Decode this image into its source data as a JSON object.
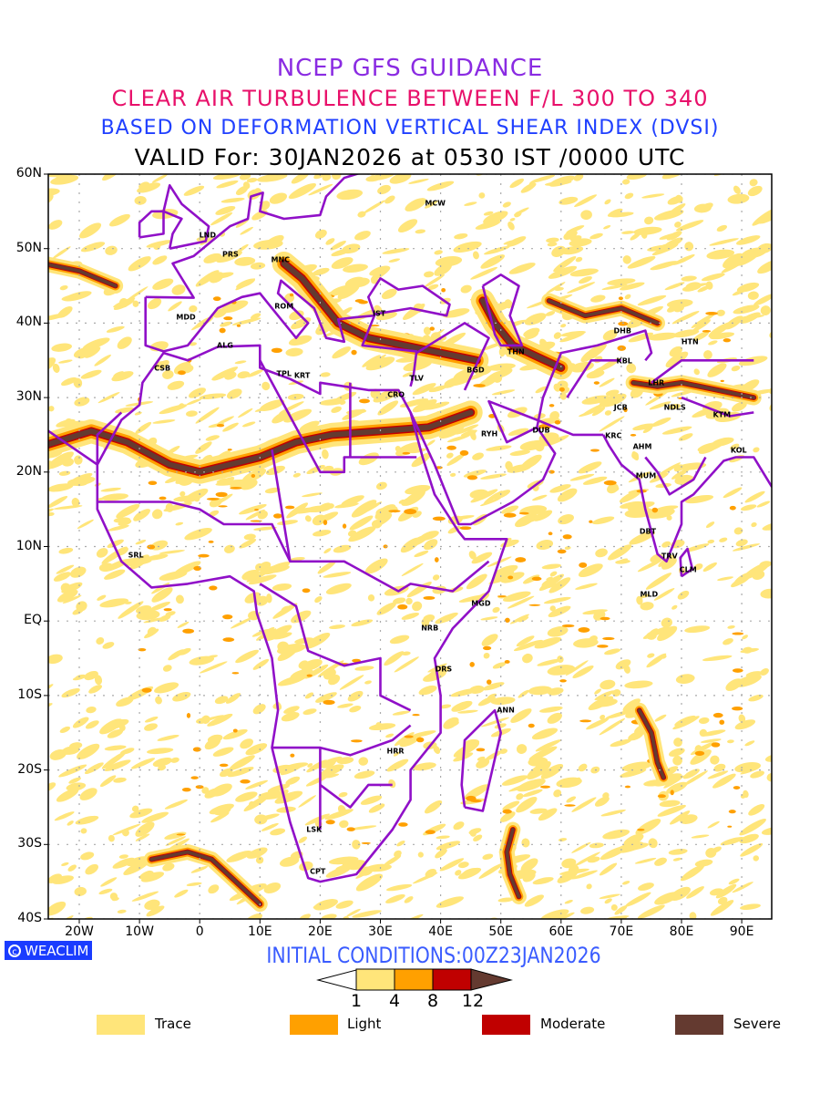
{
  "header": {
    "line1": "NCEP GFS GUIDANCE",
    "line2": "CLEAR AIR TURBULENCE BETWEEN F/L 300 TO 340",
    "line3": "BASED ON DEFORMATION VERTICAL SHEAR INDEX (DVSI)",
    "line4": "VALID For: 30JAN2026 at 0530 IST /0000 UTC"
  },
  "axes": {
    "lat_labels": [
      "60N",
      "50N",
      "40N",
      "30N",
      "20N",
      "10N",
      "EQ",
      "10S",
      "20S",
      "30S",
      "40S"
    ],
    "lat_values": [
      60,
      50,
      40,
      30,
      20,
      10,
      0,
      -10,
      -20,
      -30,
      -40
    ],
    "lon_labels": [
      "20W",
      "10W",
      "0",
      "10E",
      "20E",
      "30E",
      "40E",
      "50E",
      "60E",
      "70E",
      "80E",
      "90E"
    ],
    "lon_values": [
      -20,
      -10,
      0,
      10,
      20,
      30,
      40,
      50,
      60,
      70,
      80,
      90
    ]
  },
  "branding": "WEACLIM",
  "initial_conditions": "INITIAL CONDITIONS:00Z23JAN2026",
  "colorbar": {
    "ticks": [
      "1",
      "4",
      "8",
      "12"
    ],
    "colors": [
      "#ffe57a",
      "#ffa000",
      "#c00000",
      "#643a30"
    ]
  },
  "legend": [
    {
      "label": "Trace",
      "color": "#ffe57a"
    },
    {
      "label": "Light",
      "color": "#ffa000"
    },
    {
      "label": "Moderate",
      "color": "#c00000"
    },
    {
      "label": "Severe",
      "color": "#643a30"
    }
  ],
  "stations": [
    {
      "code": "MCW",
      "lon": 39.1,
      "lat": 56.1
    },
    {
      "code": "LND",
      "lon": 1.3,
      "lat": 51.8
    },
    {
      "code": "PRS",
      "lon": 5.1,
      "lat": 49.2
    },
    {
      "code": "MNC",
      "lon": 13.4,
      "lat": 48.5
    },
    {
      "code": "ROM",
      "lon": 14.0,
      "lat": 42.3
    },
    {
      "code": "IST",
      "lon": 29.8,
      "lat": 41.3
    },
    {
      "code": "MDD",
      "lon": -2.3,
      "lat": 40.8
    },
    {
      "code": "ALG",
      "lon": 4.2,
      "lat": 37.0
    },
    {
      "code": "CSB",
      "lon": -6.2,
      "lat": 33.9
    },
    {
      "code": "TPL",
      "lon": 14.0,
      "lat": 33.2
    },
    {
      "code": "KRT",
      "lon": 17.0,
      "lat": 33.0
    },
    {
      "code": "TLV",
      "lon": 36.0,
      "lat": 32.6
    },
    {
      "code": "CRO",
      "lon": 32.6,
      "lat": 30.4
    },
    {
      "code": "BGD",
      "lon": 45.8,
      "lat": 33.7
    },
    {
      "code": "THN",
      "lon": 52.5,
      "lat": 36.1
    },
    {
      "code": "DHB",
      "lon": 70.2,
      "lat": 38.9
    },
    {
      "code": "HTN",
      "lon": 81.4,
      "lat": 37.5
    },
    {
      "code": "KBL",
      "lon": 70.5,
      "lat": 34.9
    },
    {
      "code": "LHR",
      "lon": 75.8,
      "lat": 32.0
    },
    {
      "code": "JCB",
      "lon": 69.9,
      "lat": 28.7
    },
    {
      "code": "NDLS",
      "lon": 78.9,
      "lat": 28.7
    },
    {
      "code": "KTM",
      "lon": 86.7,
      "lat": 27.7
    },
    {
      "code": "RYH",
      "lon": 48.1,
      "lat": 25.1
    },
    {
      "code": "DUB",
      "lon": 56.7,
      "lat": 25.6
    },
    {
      "code": "KRC",
      "lon": 68.7,
      "lat": 24.9
    },
    {
      "code": "AHM",
      "lon": 73.5,
      "lat": 23.4
    },
    {
      "code": "KOL",
      "lon": 89.5,
      "lat": 22.9
    },
    {
      "code": "MUM",
      "lon": 74.1,
      "lat": 19.5
    },
    {
      "code": "DBT",
      "lon": 74.4,
      "lat": 12.0
    },
    {
      "code": "TRV",
      "lon": 78.0,
      "lat": 8.7
    },
    {
      "code": "CLM",
      "lon": 81.1,
      "lat": 6.9
    },
    {
      "code": "MLD",
      "lon": 74.6,
      "lat": 3.6
    },
    {
      "code": "SRL",
      "lon": -10.6,
      "lat": 8.8
    },
    {
      "code": "MGD",
      "lon": 46.7,
      "lat": 2.4
    },
    {
      "code": "NRB",
      "lon": 38.2,
      "lat": -0.9
    },
    {
      "code": "DRS",
      "lon": 40.5,
      "lat": -6.5
    },
    {
      "code": "ANN",
      "lon": 50.8,
      "lat": -12.0
    },
    {
      "code": "HRR",
      "lon": 32.5,
      "lat": -17.5
    },
    {
      "code": "LSK",
      "lon": 19.0,
      "lat": -28.0
    },
    {
      "code": "CPT",
      "lon": 19.6,
      "lat": -33.6
    }
  ]
}
